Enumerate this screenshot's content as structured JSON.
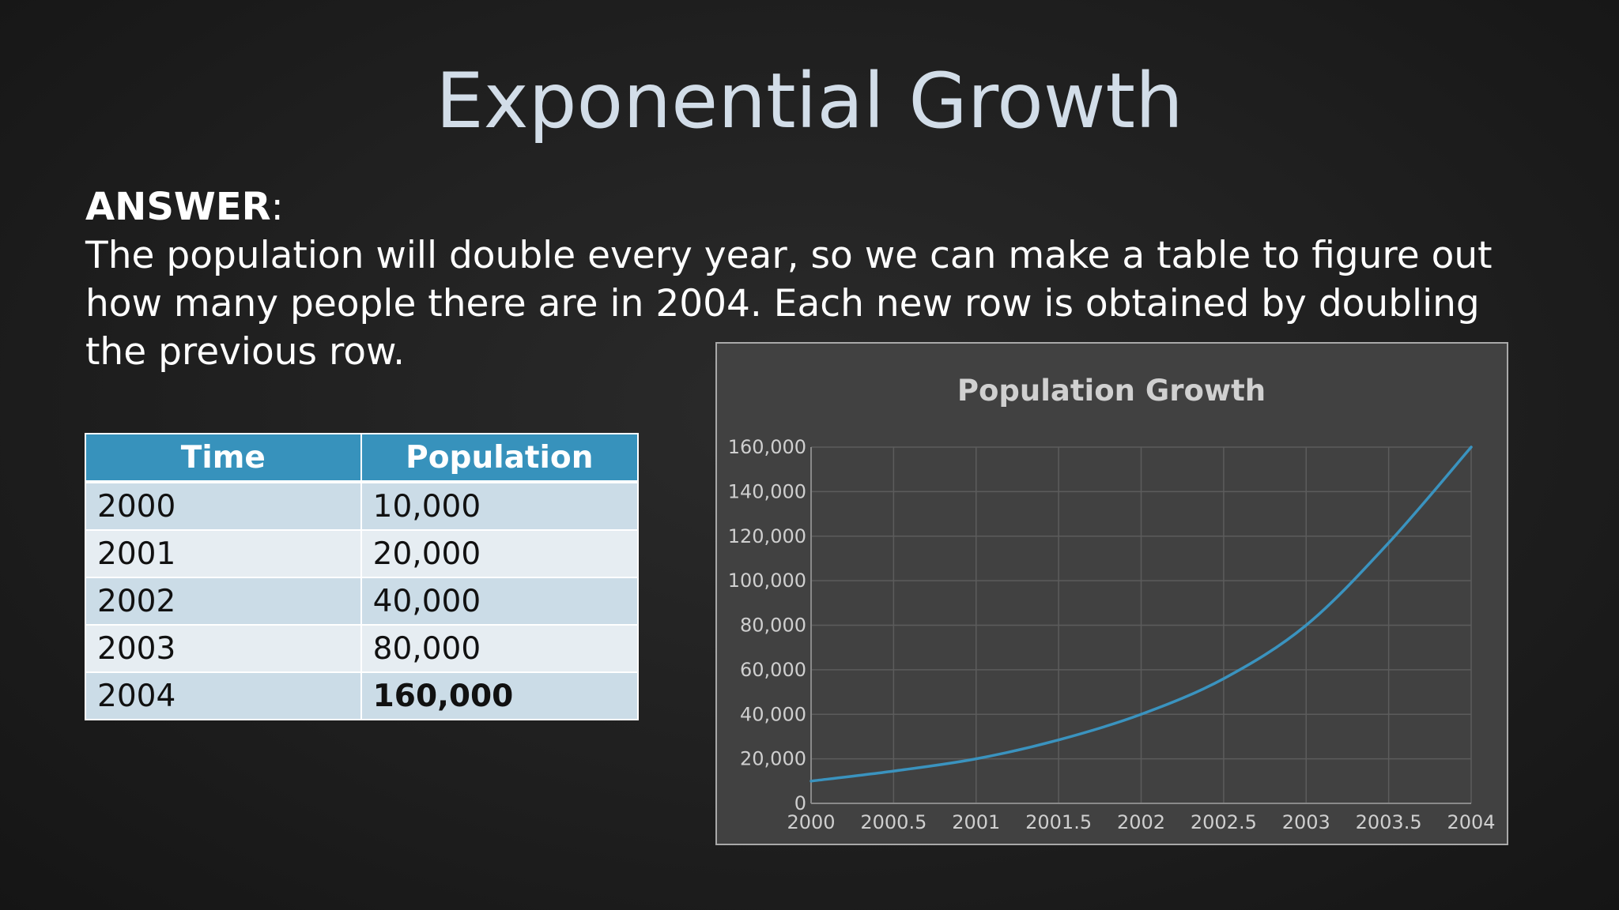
{
  "slide": {
    "title": "Exponential Growth",
    "answer_label": "ANSWER",
    "answer_colon": ":",
    "answer_text": "The population will double every year, so we can make a table to figure out how many people there are in 2004. Each new row is obtained by doubling the previous row."
  },
  "table": {
    "headers": [
      "Time",
      "Population"
    ],
    "rows": [
      {
        "time": "2000",
        "population": "10,000"
      },
      {
        "time": "2001",
        "population": "20,000"
      },
      {
        "time": "2002",
        "population": "40,000"
      },
      {
        "time": "2003",
        "population": "80,000"
      },
      {
        "time": "2004",
        "population": "160,000"
      }
    ],
    "header_color": "#3792bc"
  },
  "chart_data": {
    "type": "line",
    "title": "Population Growth",
    "xlabel": "",
    "ylabel": "",
    "xlim": [
      2000,
      2004
    ],
    "ylim": [
      0,
      160000
    ],
    "x_ticks": [
      2000,
      2000.5,
      2001,
      2001.5,
      2002,
      2002.5,
      2003,
      2003.5,
      2004
    ],
    "x_tick_labels": [
      "2000",
      "2000.5",
      "2001",
      "2001.5",
      "2002",
      "2002.5",
      "2003",
      "2003.5",
      "2004"
    ],
    "y_ticks": [
      0,
      20000,
      40000,
      60000,
      80000,
      100000,
      120000,
      140000,
      160000
    ],
    "y_tick_labels": [
      "0",
      "20,000",
      "40,000",
      "60,000",
      "80,000",
      "100,000",
      "120,000",
      "140,000",
      "160,000"
    ],
    "grid": true,
    "series": [
      {
        "color": "#3a93bf",
        "x": [
          2000,
          2000.5,
          2001,
          2001.5,
          2002,
          2002.5,
          2003,
          2003.5,
          2004
        ],
        "y": [
          10000,
          14500,
          20000,
          28500,
          40000,
          56000,
          80000,
          117000,
          160000
        ]
      }
    ],
    "background": "#414141",
    "grid_color": "#5c5c5c"
  }
}
